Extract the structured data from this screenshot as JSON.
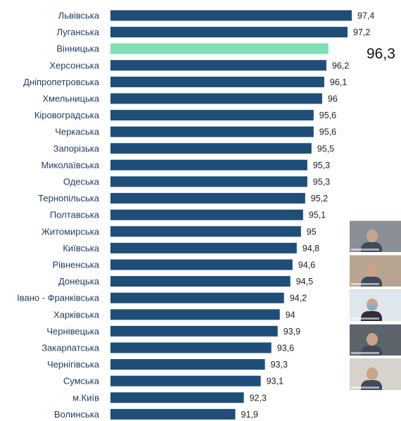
{
  "chart_data": {
    "type": "bar",
    "orientation": "horizontal",
    "categories": [
      "Львівська",
      "Луганська",
      "Вінницька",
      "Херсонська",
      "Дніпропетровська",
      "Хмельницька",
      "Кіровоградська",
      "Черкаська",
      "Запорізька",
      "Миколаївська",
      "Одеська",
      "Тернопільська",
      "Полтавська",
      "Житомирська",
      "Київська",
      "Рівненська",
      "Донецька",
      "Івано - Франківська",
      "Харківська",
      "Чернівецька",
      "Закарпатська",
      "Чернігівська",
      "Сумська",
      "м.Київ",
      "Волинська"
    ],
    "values": [
      97.4,
      97.2,
      96.3,
      96.2,
      96.1,
      96,
      95.6,
      95.6,
      95.5,
      95.3,
      95.3,
      95.2,
      95.1,
      95,
      94.8,
      94.6,
      94.5,
      94.2,
      94,
      93.9,
      93.6,
      93.3,
      93.1,
      92.3,
      91.9
    ],
    "value_labels": [
      "97,4",
      "97,2",
      "",
      "96,2",
      "96,1",
      "96",
      "95,6",
      "95,6",
      "95,5",
      "95,3",
      "95,3",
      "95,2",
      "95,1",
      "95",
      "94,8",
      "94,6",
      "94,5",
      "94,2",
      "94",
      "93,9",
      "93,6",
      "93,3",
      "93,1",
      "92,3",
      "91,9"
    ],
    "highlight": {
      "category": "Вінницька",
      "label": "96,3",
      "color": "#7ee0b3"
    },
    "bar_color": "#1f4e79",
    "xlim": [
      86,
      98
    ],
    "grid": false,
    "title": "",
    "xlabel": "",
    "ylabel": ""
  },
  "video_panel": {
    "participant_count": 5,
    "colors": [
      "#8a8f96",
      "#b7a591",
      "#dfe7ee",
      "#5d636b",
      "#d7d3cc"
    ],
    "mask_color": "#6fb3e0"
  }
}
